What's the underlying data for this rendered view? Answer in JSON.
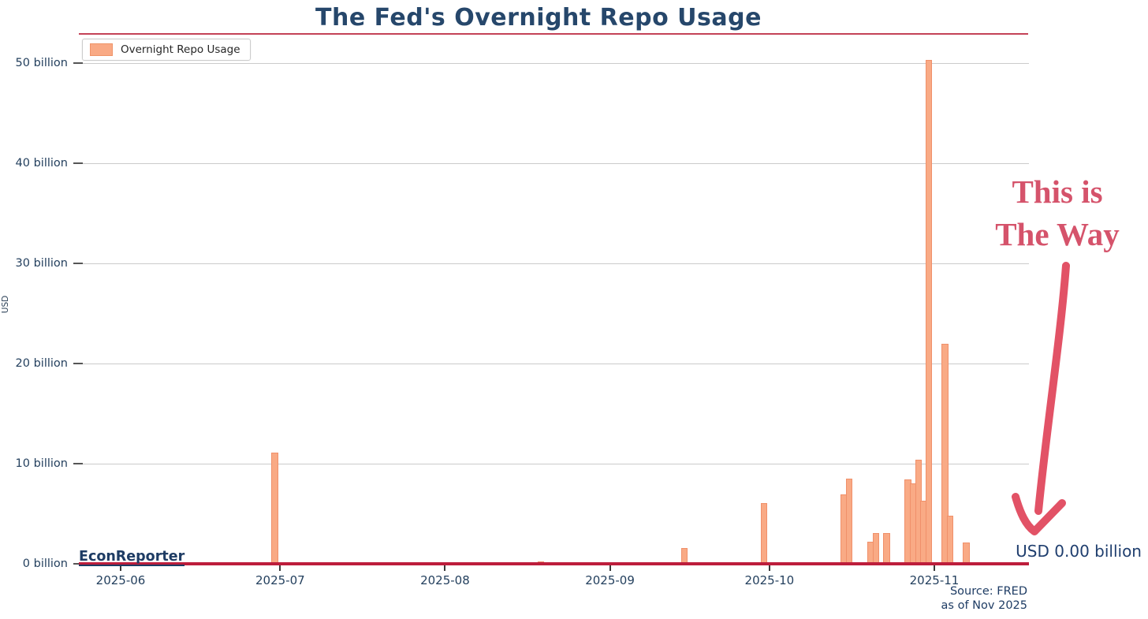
{
  "title": "The Fed's Overnight Repo Usage",
  "legend": {
    "label": "Overnight Repo Usage"
  },
  "y_axis": {
    "label": "USD"
  },
  "watermark": "EconReporter",
  "annotation": {
    "line1": "This is",
    "line2": "The Way",
    "value_label": "USD 0.00 billion"
  },
  "source": {
    "line1": "Source: FRED",
    "line2": "as of Nov 2025"
  },
  "colors": {
    "title_navy": "#26476b",
    "tick_navy": "#24405e",
    "bar_fill": "#f9aa85",
    "bar_border": "#f0906a",
    "gridline": "#cbcbcb",
    "zero_line_red": "#bd1e3c",
    "title_rule_red": "#c44257",
    "annotation_pink": "#d5536b",
    "arrow_red": "#e25266"
  },
  "chart_data": {
    "type": "bar",
    "title": "The Fed's Overnight Repo Usage",
    "ylabel": "USD",
    "unit": "billions of USD",
    "ylim": [
      0,
      52
    ],
    "grid": "horizontal",
    "legend_position": "top-left",
    "y_ticks": [
      {
        "value": 0,
        "label": "0 billion"
      },
      {
        "value": 10,
        "label": "10 billion"
      },
      {
        "value": 20,
        "label": "20 billion"
      },
      {
        "value": 30,
        "label": "30 billion"
      },
      {
        "value": 40,
        "label": "40 billion"
      },
      {
        "value": 50,
        "label": "50 billion"
      }
    ],
    "x_ticks": [
      "2025-06",
      "2025-07",
      "2025-08",
      "2025-09",
      "2025-10",
      "2025-11"
    ],
    "x_range": [
      "2025-05-24",
      "2025-11-18"
    ],
    "series": [
      {
        "name": "Overnight Repo Usage",
        "points": [
          {
            "date": "2025-06-30",
            "value": 11.1
          },
          {
            "date": "2025-07-08",
            "value": 0.15
          },
          {
            "date": "2025-08-11",
            "value": 0.1
          },
          {
            "date": "2025-08-19",
            "value": 0.25
          },
          {
            "date": "2025-09-08",
            "value": 0.1
          },
          {
            "date": "2025-09-15",
            "value": 1.6
          },
          {
            "date": "2025-09-30",
            "value": 6.1
          },
          {
            "date": "2025-10-02",
            "value": 0.15
          },
          {
            "date": "2025-10-07",
            "value": 0.15
          },
          {
            "date": "2025-10-15",
            "value": 6.9
          },
          {
            "date": "2025-10-16",
            "value": 8.5
          },
          {
            "date": "2025-10-20",
            "value": 2.2
          },
          {
            "date": "2025-10-21",
            "value": 3.1
          },
          {
            "date": "2025-10-23",
            "value": 3.1
          },
          {
            "date": "2025-10-27",
            "value": 8.4
          },
          {
            "date": "2025-10-28",
            "value": 8.0
          },
          {
            "date": "2025-10-29",
            "value": 10.4
          },
          {
            "date": "2025-10-30",
            "value": 6.3
          },
          {
            "date": "2025-10-31",
            "value": 50.35
          },
          {
            "date": "2025-11-03",
            "value": 22.0
          },
          {
            "date": "2025-11-04",
            "value": 4.8
          },
          {
            "date": "2025-11-05",
            "value": 0.15
          },
          {
            "date": "2025-11-07",
            "value": 2.1
          }
        ]
      }
    ],
    "latest_value_label": "USD 0.00 billion"
  }
}
